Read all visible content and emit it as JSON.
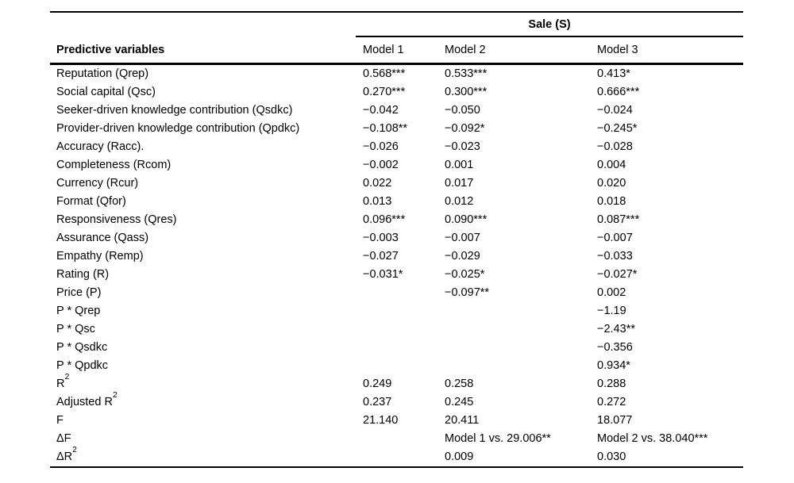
{
  "table": {
    "spanner": "Sale (S)",
    "col_header_label": "Predictive variables",
    "model_headers": [
      "Model 1",
      "Model 2",
      "Model 3"
    ],
    "rows": [
      {
        "label": "Reputation (Qrep)",
        "m1": "0.568***",
        "m2": "0.533***",
        "m3": "0.413*"
      },
      {
        "label": "Social capital (Qsc)",
        "m1": "0.270***",
        "m2": "0.300***",
        "m3": "0.666***"
      },
      {
        "label": "Seeker-driven knowledge contribution (Qsdkc)",
        "m1": "−0.042",
        "m2": "−0.050",
        "m3": "−0.024"
      },
      {
        "label": "Provider-driven knowledge contribution (Qpdkc)",
        "m1": "−0.108**",
        "m2": "−0.092*",
        "m3": "−0.245*"
      },
      {
        "label": "Accuracy (Racc).",
        "m1": "−0.026",
        "m2": "−0.023",
        "m3": "−0.028"
      },
      {
        "label": "Completeness (Rcom)",
        "m1": "−0.002",
        "m2": "0.001",
        "m3": "0.004"
      },
      {
        "label": "Currency (Rcur)",
        "m1": "0.022",
        "m2": "0.017",
        "m3": "0.020"
      },
      {
        "label": "Format (Qfor)",
        "m1": "0.013",
        "m2": "0.012",
        "m3": "0.018"
      },
      {
        "label": "Responsiveness (Qres)",
        "m1": "0.096***",
        "m2": "0.090***",
        "m3": "0.087***"
      },
      {
        "label": "Assurance (Qass)",
        "m1": "−0.003",
        "m2": "−0.007",
        "m3": "−0.007"
      },
      {
        "label": "Empathy (Remp)",
        "m1": "−0.027",
        "m2": "−0.029",
        "m3": "−0.033"
      },
      {
        "label": "Rating (R)",
        "m1": "−0.031*",
        "m2": "−0.025*",
        "m3": "−0.027*"
      },
      {
        "label": "Price (P)",
        "m1": "",
        "m2": "−0.097**",
        "m3": "0.002"
      },
      {
        "label": "P * Qrep",
        "m1": "",
        "m2": "",
        "m3": "−1.19"
      },
      {
        "label": "P * Qsc",
        "m1": "",
        "m2": "",
        "m3": "−2.43**"
      },
      {
        "label": "P * Qsdkc",
        "m1": "",
        "m2": "",
        "m3": "−0.356"
      },
      {
        "label": "P * Qpdkc",
        "m1": "",
        "m2": "",
        "m3": "0.934*"
      },
      {
        "label": "R",
        "sup": "2",
        "m1": "0.249",
        "m2": "0.258",
        "m3": "0.288"
      },
      {
        "label": "Adjusted R",
        "sup": "2",
        "m1": "0.237",
        "m2": "0.245",
        "m3": "0.272"
      },
      {
        "label": "F",
        "m1": "21.140",
        "m2": "20.411",
        "m3": "18.077"
      },
      {
        "label": "ΔF",
        "m1": "",
        "m2": "Model 1 vs. 29.006**",
        "m3": "Model 2 vs. 38.040***"
      },
      {
        "label": "ΔR",
        "sup": "2",
        "m1": "",
        "m2": "0.009",
        "m3": "0.030"
      }
    ],
    "colors": {
      "text": "#000000",
      "rule": "#000000",
      "background": "#ffffff"
    }
  }
}
